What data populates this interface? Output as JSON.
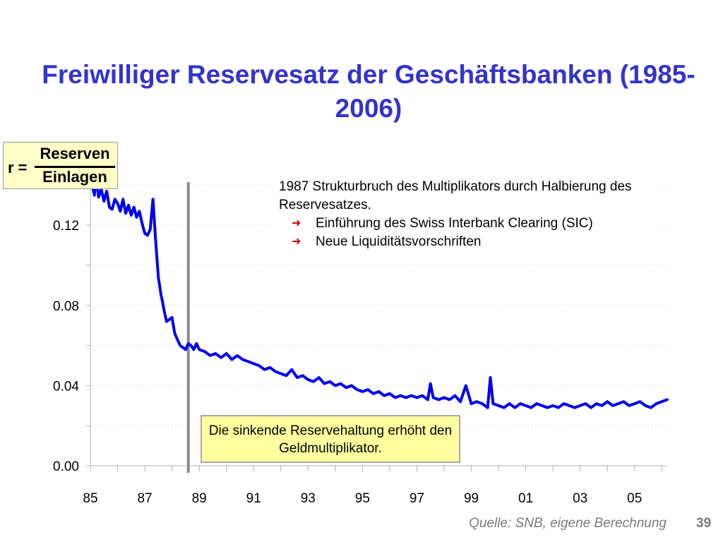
{
  "title": "Freiwilliger Reservesatz der Geschäftsbanken (1985-2006)",
  "formula": {
    "lhs": "r =",
    "numerator": "Reserven",
    "denominator": "Einlagen"
  },
  "annotation": {
    "line": "1987 Strukturbruch des Multiplikators durch Halbierung des Reservesatzes.",
    "bullets": [
      "Einführung des Swiss Interbank Clearing (SIC)",
      "Neue Liquiditätsvorschriften"
    ]
  },
  "callout": "Die sinkende Reservehaltung erhöht den Geldmultiplikator.",
  "source": "Quelle: SNB, eigene Berechnung",
  "page_number": "39",
  "colors": {
    "title": "#3333cc",
    "series": "#0000ee",
    "structural_break": "#8c8c8c"
  },
  "chart_data": {
    "type": "line",
    "xlabel": "",
    "ylabel": "",
    "xlim": [
      1985.0,
      2006.2
    ],
    "ylim": [
      0.0,
      0.15
    ],
    "yticks": [
      {
        "value": 0.0,
        "label": "0.00"
      },
      {
        "value": 0.04,
        "label": "0.04"
      },
      {
        "value": 0.08,
        "label": "0.08"
      },
      {
        "value": 0.12,
        "label": "0.12"
      }
    ],
    "xticks": [
      {
        "value": 1985,
        "label": "85"
      },
      {
        "value": 1987,
        "label": "87"
      },
      {
        "value": 1989,
        "label": "89"
      },
      {
        "value": 1991,
        "label": "91"
      },
      {
        "value": 1993,
        "label": "93"
      },
      {
        "value": 1995,
        "label": "95"
      },
      {
        "value": 1997,
        "label": "97"
      },
      {
        "value": 1999,
        "label": "99"
      },
      {
        "value": 2001,
        "label": "01"
      },
      {
        "value": 2003,
        "label": "03"
      },
      {
        "value": 2005,
        "label": "05"
      }
    ],
    "structural_break_x": 1988.6,
    "grid": true,
    "series": [
      {
        "name": "",
        "x": [
          1985.0,
          1985.1,
          1985.15,
          1985.2,
          1985.3,
          1985.4,
          1985.5,
          1985.6,
          1985.7,
          1985.8,
          1985.9,
          1986.0,
          1986.1,
          1986.2,
          1986.3,
          1986.4,
          1986.5,
          1986.6,
          1986.7,
          1986.8,
          1986.9,
          1987.0,
          1987.1,
          1987.2,
          1987.3,
          1987.4,
          1987.5,
          1987.6,
          1987.65,
          1987.7,
          1987.8,
          1987.9,
          1988.0,
          1988.1,
          1988.2,
          1988.3,
          1988.4,
          1988.5,
          1988.6,
          1988.7,
          1988.8,
          1988.9,
          1989.0,
          1989.2,
          1989.4,
          1989.6,
          1989.8,
          1990.0,
          1990.2,
          1990.4,
          1990.6,
          1990.8,
          1991.0,
          1991.2,
          1991.4,
          1991.6,
          1991.8,
          1992.0,
          1992.2,
          1992.4,
          1992.6,
          1992.8,
          1993.0,
          1993.2,
          1993.4,
          1993.6,
          1993.8,
          1994.0,
          1994.2,
          1994.4,
          1994.6,
          1994.8,
          1995.0,
          1995.2,
          1995.4,
          1995.6,
          1995.8,
          1996.0,
          1996.2,
          1996.4,
          1996.6,
          1996.8,
          1997.0,
          1997.2,
          1997.4,
          1997.5,
          1997.6,
          1997.8,
          1998.0,
          1998.2,
          1998.4,
          1998.6,
          1998.8,
          1999.0,
          1999.2,
          1999.4,
          1999.6,
          1999.7,
          1999.8,
          2000.0,
          2000.2,
          2000.4,
          2000.6,
          2000.8,
          2001.0,
          2001.2,
          2001.4,
          2001.6,
          2001.8,
          2002.0,
          2002.2,
          2002.4,
          2002.6,
          2002.8,
          2003.0,
          2003.2,
          2003.4,
          2003.6,
          2003.8,
          2004.0,
          2004.2,
          2004.4,
          2004.6,
          2004.8,
          2005.0,
          2005.2,
          2005.4,
          2005.6,
          2005.8,
          2006.0,
          2006.2
        ],
        "y": [
          0.14,
          0.138,
          0.135,
          0.146,
          0.134,
          0.138,
          0.132,
          0.137,
          0.129,
          0.128,
          0.133,
          0.131,
          0.127,
          0.133,
          0.126,
          0.13,
          0.125,
          0.129,
          0.124,
          0.127,
          0.121,
          0.116,
          0.115,
          0.118,
          0.133,
          0.112,
          0.094,
          0.085,
          0.082,
          0.078,
          0.072,
          0.073,
          0.074,
          0.066,
          0.063,
          0.06,
          0.059,
          0.058,
          0.061,
          0.06,
          0.058,
          0.061,
          0.058,
          0.057,
          0.055,
          0.056,
          0.054,
          0.056,
          0.053,
          0.055,
          0.053,
          0.052,
          0.051,
          0.05,
          0.048,
          0.049,
          0.047,
          0.046,
          0.045,
          0.048,
          0.044,
          0.045,
          0.043,
          0.042,
          0.044,
          0.041,
          0.042,
          0.04,
          0.041,
          0.039,
          0.04,
          0.038,
          0.037,
          0.038,
          0.036,
          0.037,
          0.035,
          0.036,
          0.034,
          0.035,
          0.034,
          0.035,
          0.034,
          0.035,
          0.033,
          0.041,
          0.034,
          0.033,
          0.034,
          0.033,
          0.035,
          0.032,
          0.04,
          0.031,
          0.032,
          0.031,
          0.029,
          0.044,
          0.031,
          0.03,
          0.029,
          0.031,
          0.029,
          0.031,
          0.03,
          0.029,
          0.031,
          0.03,
          0.029,
          0.03,
          0.029,
          0.031,
          0.03,
          0.029,
          0.03,
          0.031,
          0.029,
          0.031,
          0.03,
          0.032,
          0.03,
          0.031,
          0.032,
          0.03,
          0.031,
          0.032,
          0.03,
          0.029,
          0.031,
          0.032,
          0.033
        ]
      }
    ]
  }
}
